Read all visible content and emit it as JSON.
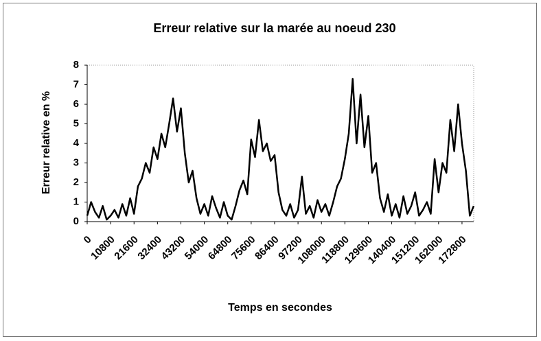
{
  "chart_data": {
    "type": "line",
    "title": "Erreur relative sur la marée au noeud 230",
    "xlabel": "Temps en secondes",
    "ylabel": "Erreur relative en %",
    "color": "#000000",
    "x": [
      0,
      1800,
      3600,
      5400,
      7200,
      9000,
      10800,
      12600,
      14400,
      16200,
      18000,
      19800,
      21600,
      23400,
      25200,
      27000,
      28800,
      30600,
      32400,
      34200,
      36000,
      37800,
      39600,
      41400,
      43200,
      45000,
      46800,
      48600,
      50400,
      52200,
      54000,
      55800,
      57600,
      59400,
      61200,
      63000,
      64800,
      66600,
      68400,
      70200,
      72000,
      73800,
      75600,
      77400,
      79200,
      81000,
      82800,
      84600,
      86400,
      88200,
      90000,
      91800,
      93600,
      95400,
      97200,
      99000,
      100800,
      102600,
      104400,
      106200,
      108000,
      109800,
      111600,
      113400,
      115200,
      117000,
      118800,
      120600,
      122400,
      124200,
      126000,
      127800,
      129600,
      131400,
      133200,
      135000,
      136800,
      138600,
      140400,
      142200,
      144000,
      145800,
      147600,
      149400,
      151200,
      153000,
      154800,
      156600,
      158400,
      160200,
      162000,
      163800,
      165600,
      167400,
      169200,
      171000,
      172800,
      174600,
      176400,
      178200
    ],
    "values": [
      0.3,
      1.0,
      0.5,
      0.2,
      0.8,
      0.1,
      0.3,
      0.6,
      0.2,
      0.9,
      0.3,
      1.2,
      0.4,
      1.8,
      2.2,
      3.0,
      2.5,
      3.8,
      3.2,
      4.5,
      3.8,
      5.0,
      6.3,
      4.6,
      5.8,
      3.5,
      2.0,
      2.6,
      1.2,
      0.4,
      0.9,
      0.3,
      1.3,
      0.7,
      0.2,
      1.0,
      0.3,
      0.1,
      0.8,
      1.6,
      2.1,
      1.4,
      4.2,
      3.3,
      5.2,
      3.6,
      4.0,
      3.1,
      3.4,
      1.5,
      0.6,
      0.3,
      0.9,
      0.2,
      0.6,
      2.3,
      0.4,
      0.8,
      0.2,
      1.1,
      0.5,
      0.9,
      0.3,
      1.0,
      1.8,
      2.2,
      3.2,
      4.5,
      7.3,
      4.0,
      6.5,
      3.8,
      5.4,
      2.5,
      3.0,
      1.2,
      0.5,
      1.4,
      0.3,
      0.9,
      0.2,
      1.3,
      0.4,
      0.8,
      1.5,
      0.3,
      0.6,
      1.0,
      0.4,
      3.2,
      1.5,
      3.0,
      2.5,
      5.2,
      3.6,
      6.0,
      4.0,
      2.6,
      0.3,
      0.8
    ],
    "xlim": [
      0,
      178200
    ],
    "xticks": [
      0,
      10800,
      21600,
      32400,
      43200,
      54000,
      64800,
      75600,
      86400,
      97200,
      108000,
      118800,
      129600,
      140400,
      151200,
      162000,
      172800
    ],
    "ylim": [
      0,
      8
    ],
    "yticks": [
      0,
      1,
      2,
      3,
      4,
      5,
      6,
      7,
      8
    ]
  }
}
